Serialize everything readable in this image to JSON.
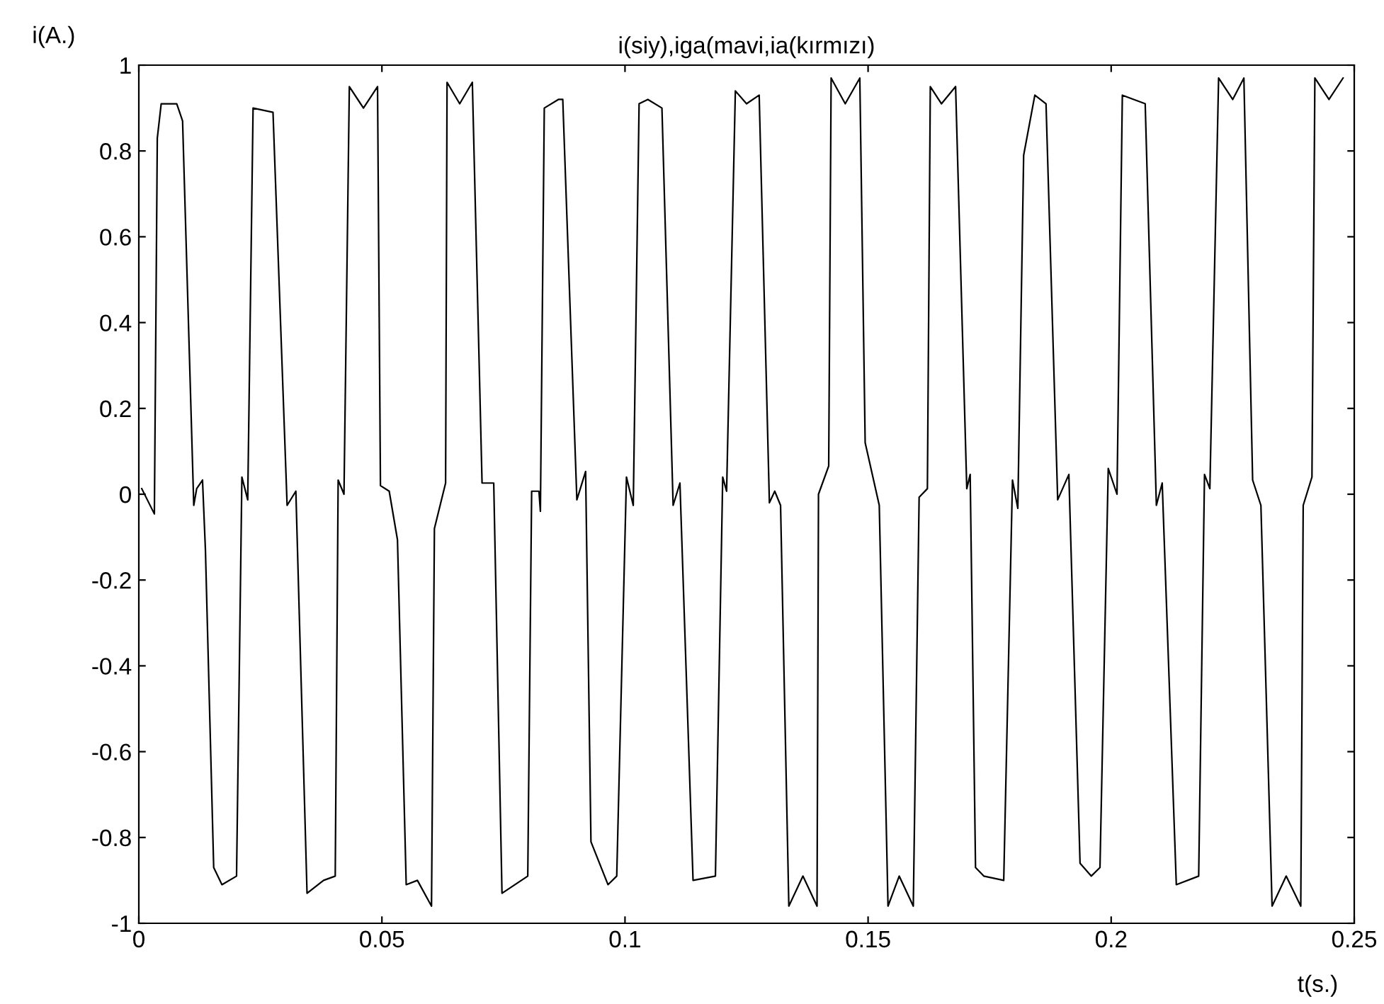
{
  "chart_data": {
    "type": "line",
    "title": "i(siy),iga(mavi,ia(kırmızı)",
    "xlabel": "t(s.)",
    "ylabel": "i(A.)",
    "xlim": [
      0,
      0.25
    ],
    "ylim": [
      -1,
      1
    ],
    "xticks": [
      0,
      0.05,
      0.1,
      0.15,
      0.2,
      0.25
    ],
    "yticks": [
      -1,
      -0.8,
      -0.6,
      -0.4,
      -0.2,
      0,
      0.2,
      0.4,
      0.6,
      0.8,
      1
    ],
    "grid": false,
    "series": [
      {
        "color": "#000000",
        "x": [
          0.0006,
          0.0032,
          0.0038,
          0.0046,
          0.0078,
          0.009,
          0.0113,
          0.0119,
          0.0131,
          0.0137,
          0.0154,
          0.0171,
          0.0201,
          0.0212,
          0.0224,
          0.0235,
          0.0276,
          0.0305,
          0.0323,
          0.0346,
          0.038,
          0.0404,
          0.041,
          0.0422,
          0.0433,
          0.0462,
          0.0491,
          0.0497,
          0.0515,
          0.0532,
          0.055,
          0.0573,
          0.0602,
          0.0608,
          0.0631,
          0.0634,
          0.066,
          0.0686,
          0.0706,
          0.073,
          0.0747,
          0.08,
          0.0808,
          0.0823,
          0.0826,
          0.0834,
          0.0863,
          0.0872,
          0.0901,
          0.0919,
          0.093,
          0.0965,
          0.0983,
          0.1003,
          0.1017,
          0.1029,
          0.1047,
          0.1076,
          0.1099,
          0.1113,
          0.114,
          0.1186,
          0.1201,
          0.1209,
          0.1227,
          0.125,
          0.1276,
          0.1297,
          0.1308,
          0.132,
          0.1337,
          0.1366,
          0.1395,
          0.1398,
          0.1419,
          0.1424,
          0.1453,
          0.1483,
          0.1494,
          0.1523,
          0.1541,
          0.1564,
          0.1593,
          0.1605,
          0.1622,
          0.1628,
          0.1651,
          0.168,
          0.1703,
          0.171,
          0.1721,
          0.1738,
          0.1779,
          0.1797,
          0.1808,
          0.182,
          0.1843,
          0.1866,
          0.189,
          0.1913,
          0.1936,
          0.1959,
          0.1977,
          0.1994,
          0.2012,
          0.2023,
          0.207,
          0.2093,
          0.2105,
          0.2134,
          0.218,
          0.2192,
          0.2203,
          0.2221,
          0.225,
          0.2273,
          0.2291,
          0.2308,
          0.2331,
          0.236,
          0.239,
          0.2395,
          0.2413,
          0.2419,
          0.2448,
          0.2477
        ],
        "values": [
          0.013,
          -0.046,
          0.83,
          0.91,
          0.91,
          0.87,
          -0.026,
          0.013,
          0.033,
          -0.13,
          -0.87,
          -0.91,
          -0.89,
          0.04,
          -0.013,
          0.9,
          0.89,
          -0.026,
          0.007,
          -0.93,
          -0.9,
          -0.89,
          0.033,
          0,
          0.95,
          0.9,
          0.95,
          0.02,
          0.007,
          -0.106,
          -0.91,
          -0.9,
          -0.96,
          -0.08,
          0.026,
          0.96,
          0.91,
          0.96,
          0.026,
          0.026,
          -0.93,
          -0.89,
          0.007,
          0.007,
          -0.04,
          0.9,
          0.92,
          0.92,
          -0.013,
          0.053,
          -0.81,
          -0.91,
          -0.89,
          0.04,
          -0.026,
          0.91,
          0.92,
          0.9,
          -0.026,
          0.026,
          -0.9,
          -0.89,
          0.04,
          0.007,
          0.94,
          0.91,
          0.93,
          -0.02,
          0.007,
          -0.026,
          -0.96,
          -0.89,
          -0.96,
          0,
          0.066,
          0.97,
          0.91,
          0.97,
          0.12,
          -0.026,
          -0.96,
          -0.89,
          -0.96,
          -0.007,
          0.013,
          0.95,
          0.91,
          0.95,
          0.013,
          0.046,
          -0.87,
          -0.89,
          -0.9,
          0.033,
          -0.033,
          0.79,
          0.93,
          0.91,
          -0.013,
          0.046,
          -0.86,
          -0.89,
          -0.87,
          0.06,
          0,
          0.93,
          0.91,
          -0.026,
          0.026,
          -0.91,
          -0.89,
          0.046,
          0.013,
          0.97,
          0.92,
          0.97,
          0.033,
          -0.026,
          -0.96,
          -0.89,
          -0.96,
          -0.026,
          0.04,
          0.97,
          0.92,
          0.97
        ]
      }
    ]
  }
}
